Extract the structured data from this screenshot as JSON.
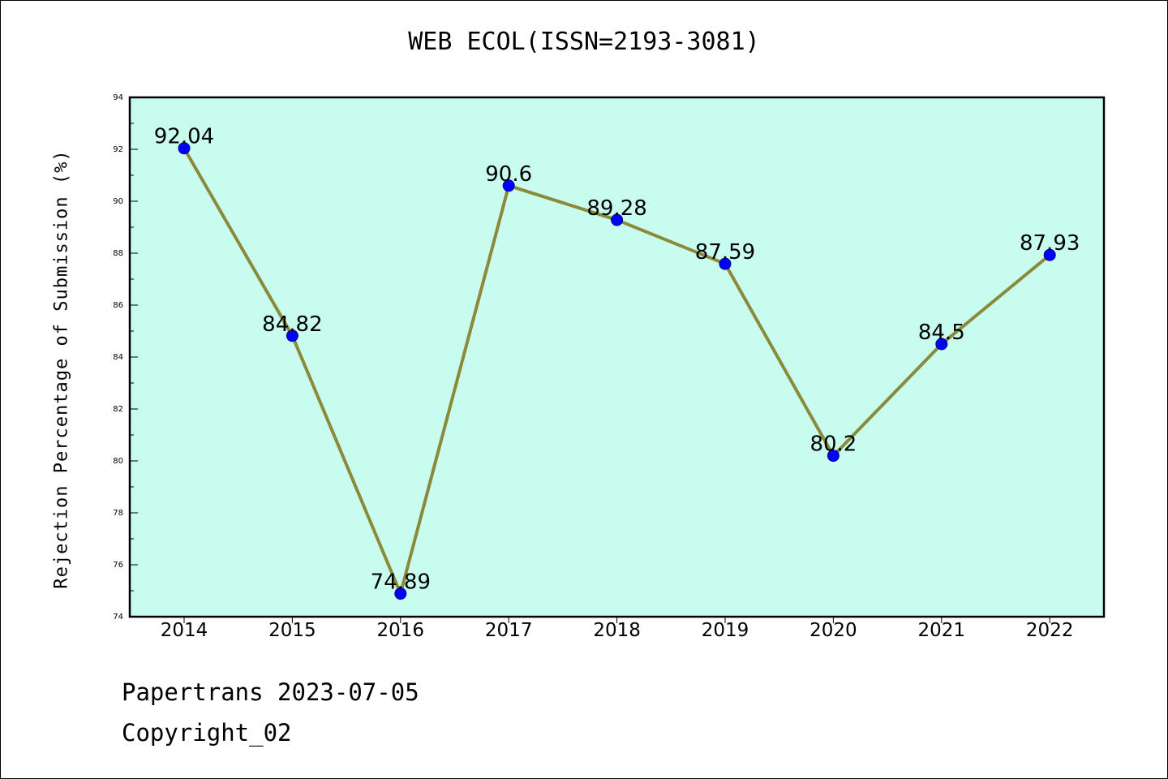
{
  "chart_data": {
    "type": "line",
    "title": "WEB ECOL(ISSN=2193-3081)",
    "xlabel": "",
    "ylabel": "Rejection Percentage of Submission (%)",
    "categories": [
      "2014",
      "2015",
      "2016",
      "2017",
      "2018",
      "2019",
      "2020",
      "2021",
      "2022"
    ],
    "series": [
      {
        "values": [
          92.04,
          84.82,
          74.89,
          90.6,
          89.28,
          87.59,
          80.2,
          84.5,
          87.93
        ],
        "data_labels": [
          "92.04",
          "84.82",
          "74.89",
          "90.6",
          "89.28",
          "87.59",
          "80.2",
          "84.5",
          "87.93"
        ]
      }
    ],
    "ylim": [
      74,
      94
    ],
    "yticks": [
      74,
      76,
      78,
      80,
      82,
      84,
      86,
      88,
      90,
      92,
      94
    ],
    "grid": false,
    "colors": {
      "plot_background": "#c8fcee",
      "line": "#8b8a3a",
      "marker": "#0000ff"
    }
  },
  "footer": {
    "line1": "Papertrans 2023-07-05",
    "line2": "Copyright_02"
  }
}
